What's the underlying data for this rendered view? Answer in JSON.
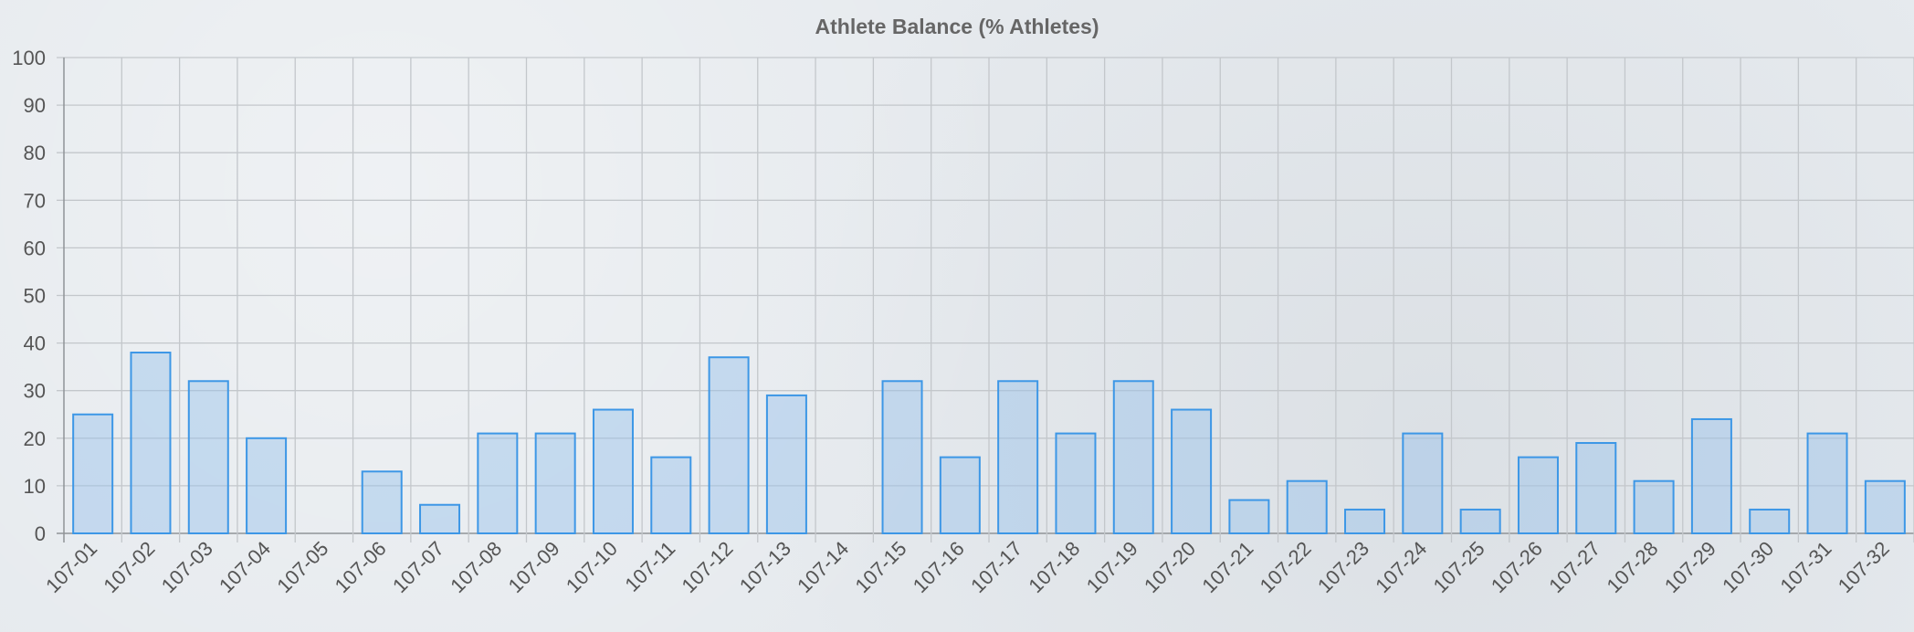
{
  "chart_data": {
    "type": "bar",
    "title": "Athlete Balance (% Athletes)",
    "xlabel": "",
    "ylabel": "",
    "ylim": [
      0,
      100
    ],
    "yticks": [
      "0",
      "10",
      "20",
      "30",
      "40",
      "50",
      "60",
      "70",
      "80",
      "90",
      "100"
    ],
    "grid": true,
    "legend": "none",
    "categories": [
      "107-01",
      "107-02",
      "107-03",
      "107-04",
      "107-05",
      "107-06",
      "107-07",
      "107-08",
      "107-09",
      "107-10",
      "107-11",
      "107-12",
      "107-13",
      "107-14",
      "107-15",
      "107-16",
      "107-17",
      "107-18",
      "107-19",
      "107-20",
      "107-21",
      "107-22",
      "107-23",
      "107-24",
      "107-25",
      "107-26",
      "107-27",
      "107-28",
      "107-29",
      "107-30",
      "107-31",
      "107-32"
    ],
    "values": [
      25,
      38,
      32,
      20,
      0,
      13,
      6,
      21,
      21,
      26,
      16,
      37,
      29,
      0,
      32,
      16,
      32,
      21,
      32,
      26,
      7,
      11,
      5,
      21,
      5,
      16,
      19,
      11,
      24,
      5,
      21,
      11
    ],
    "colors": {
      "bar_fill": "rgba(151,194,236,0.45)",
      "bar_stroke": "#3d97e6",
      "grid": "#c3c7cb",
      "text": "#555555"
    }
  }
}
